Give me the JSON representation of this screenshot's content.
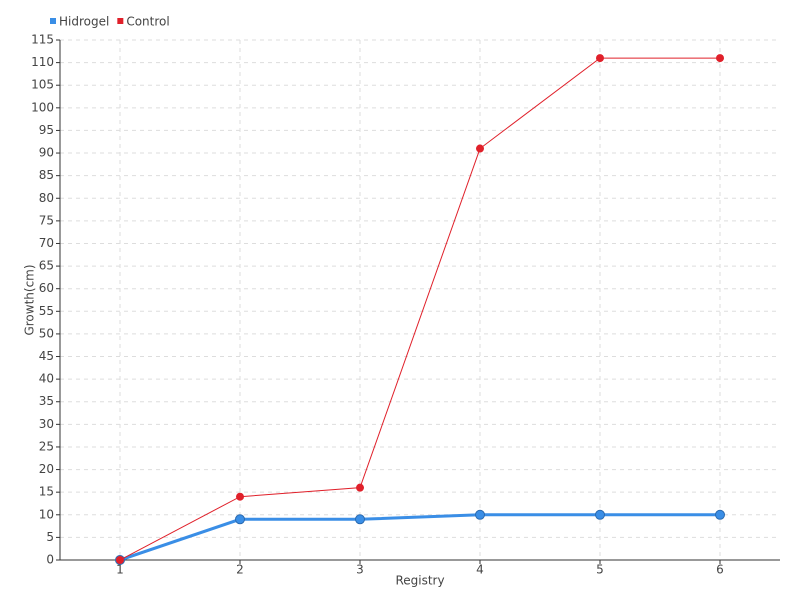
{
  "chart_data": {
    "type": "line",
    "x_label": "Registry",
    "y_label": "Growth(cm)",
    "x": [
      1,
      2,
      3,
      4,
      5,
      6
    ],
    "xlim": [
      0.5,
      6.5
    ],
    "xticks": [
      1,
      2,
      3,
      4,
      5,
      6
    ],
    "ylim": [
      0,
      115
    ],
    "yticks": [
      0,
      5,
      10,
      15,
      20,
      25,
      30,
      35,
      40,
      45,
      50,
      55,
      60,
      65,
      70,
      75,
      80,
      85,
      90,
      95,
      100,
      105,
      110,
      115
    ],
    "grid": true,
    "legend": "top-left",
    "series": [
      {
        "name": "Hidrogel",
        "color": "#3a8ee6",
        "values": [
          0,
          9,
          9,
          10,
          10,
          10
        ]
      },
      {
        "name": "Control",
        "color": "#e0202a",
        "values": [
          0,
          14,
          16,
          91,
          111,
          111
        ]
      }
    ]
  }
}
